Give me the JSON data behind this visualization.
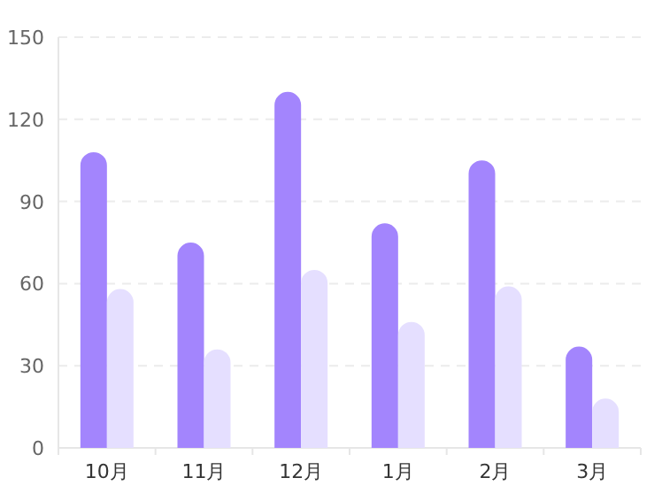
{
  "chart_data": {
    "type": "bar",
    "categories": [
      "10月",
      "11月",
      "12月",
      "1月",
      "2月",
      "3月"
    ],
    "series": [
      {
        "color": "#a385fd",
        "values": [
          108,
          75,
          130,
          82,
          105,
          37
        ]
      },
      {
        "color": "#e5dfff",
        "values": [
          58,
          36,
          65,
          46,
          59,
          18
        ]
      }
    ],
    "ylim": [
      0,
      150
    ],
    "yticks": [
      0,
      30,
      60,
      90,
      120,
      150
    ],
    "grid": "y"
  }
}
